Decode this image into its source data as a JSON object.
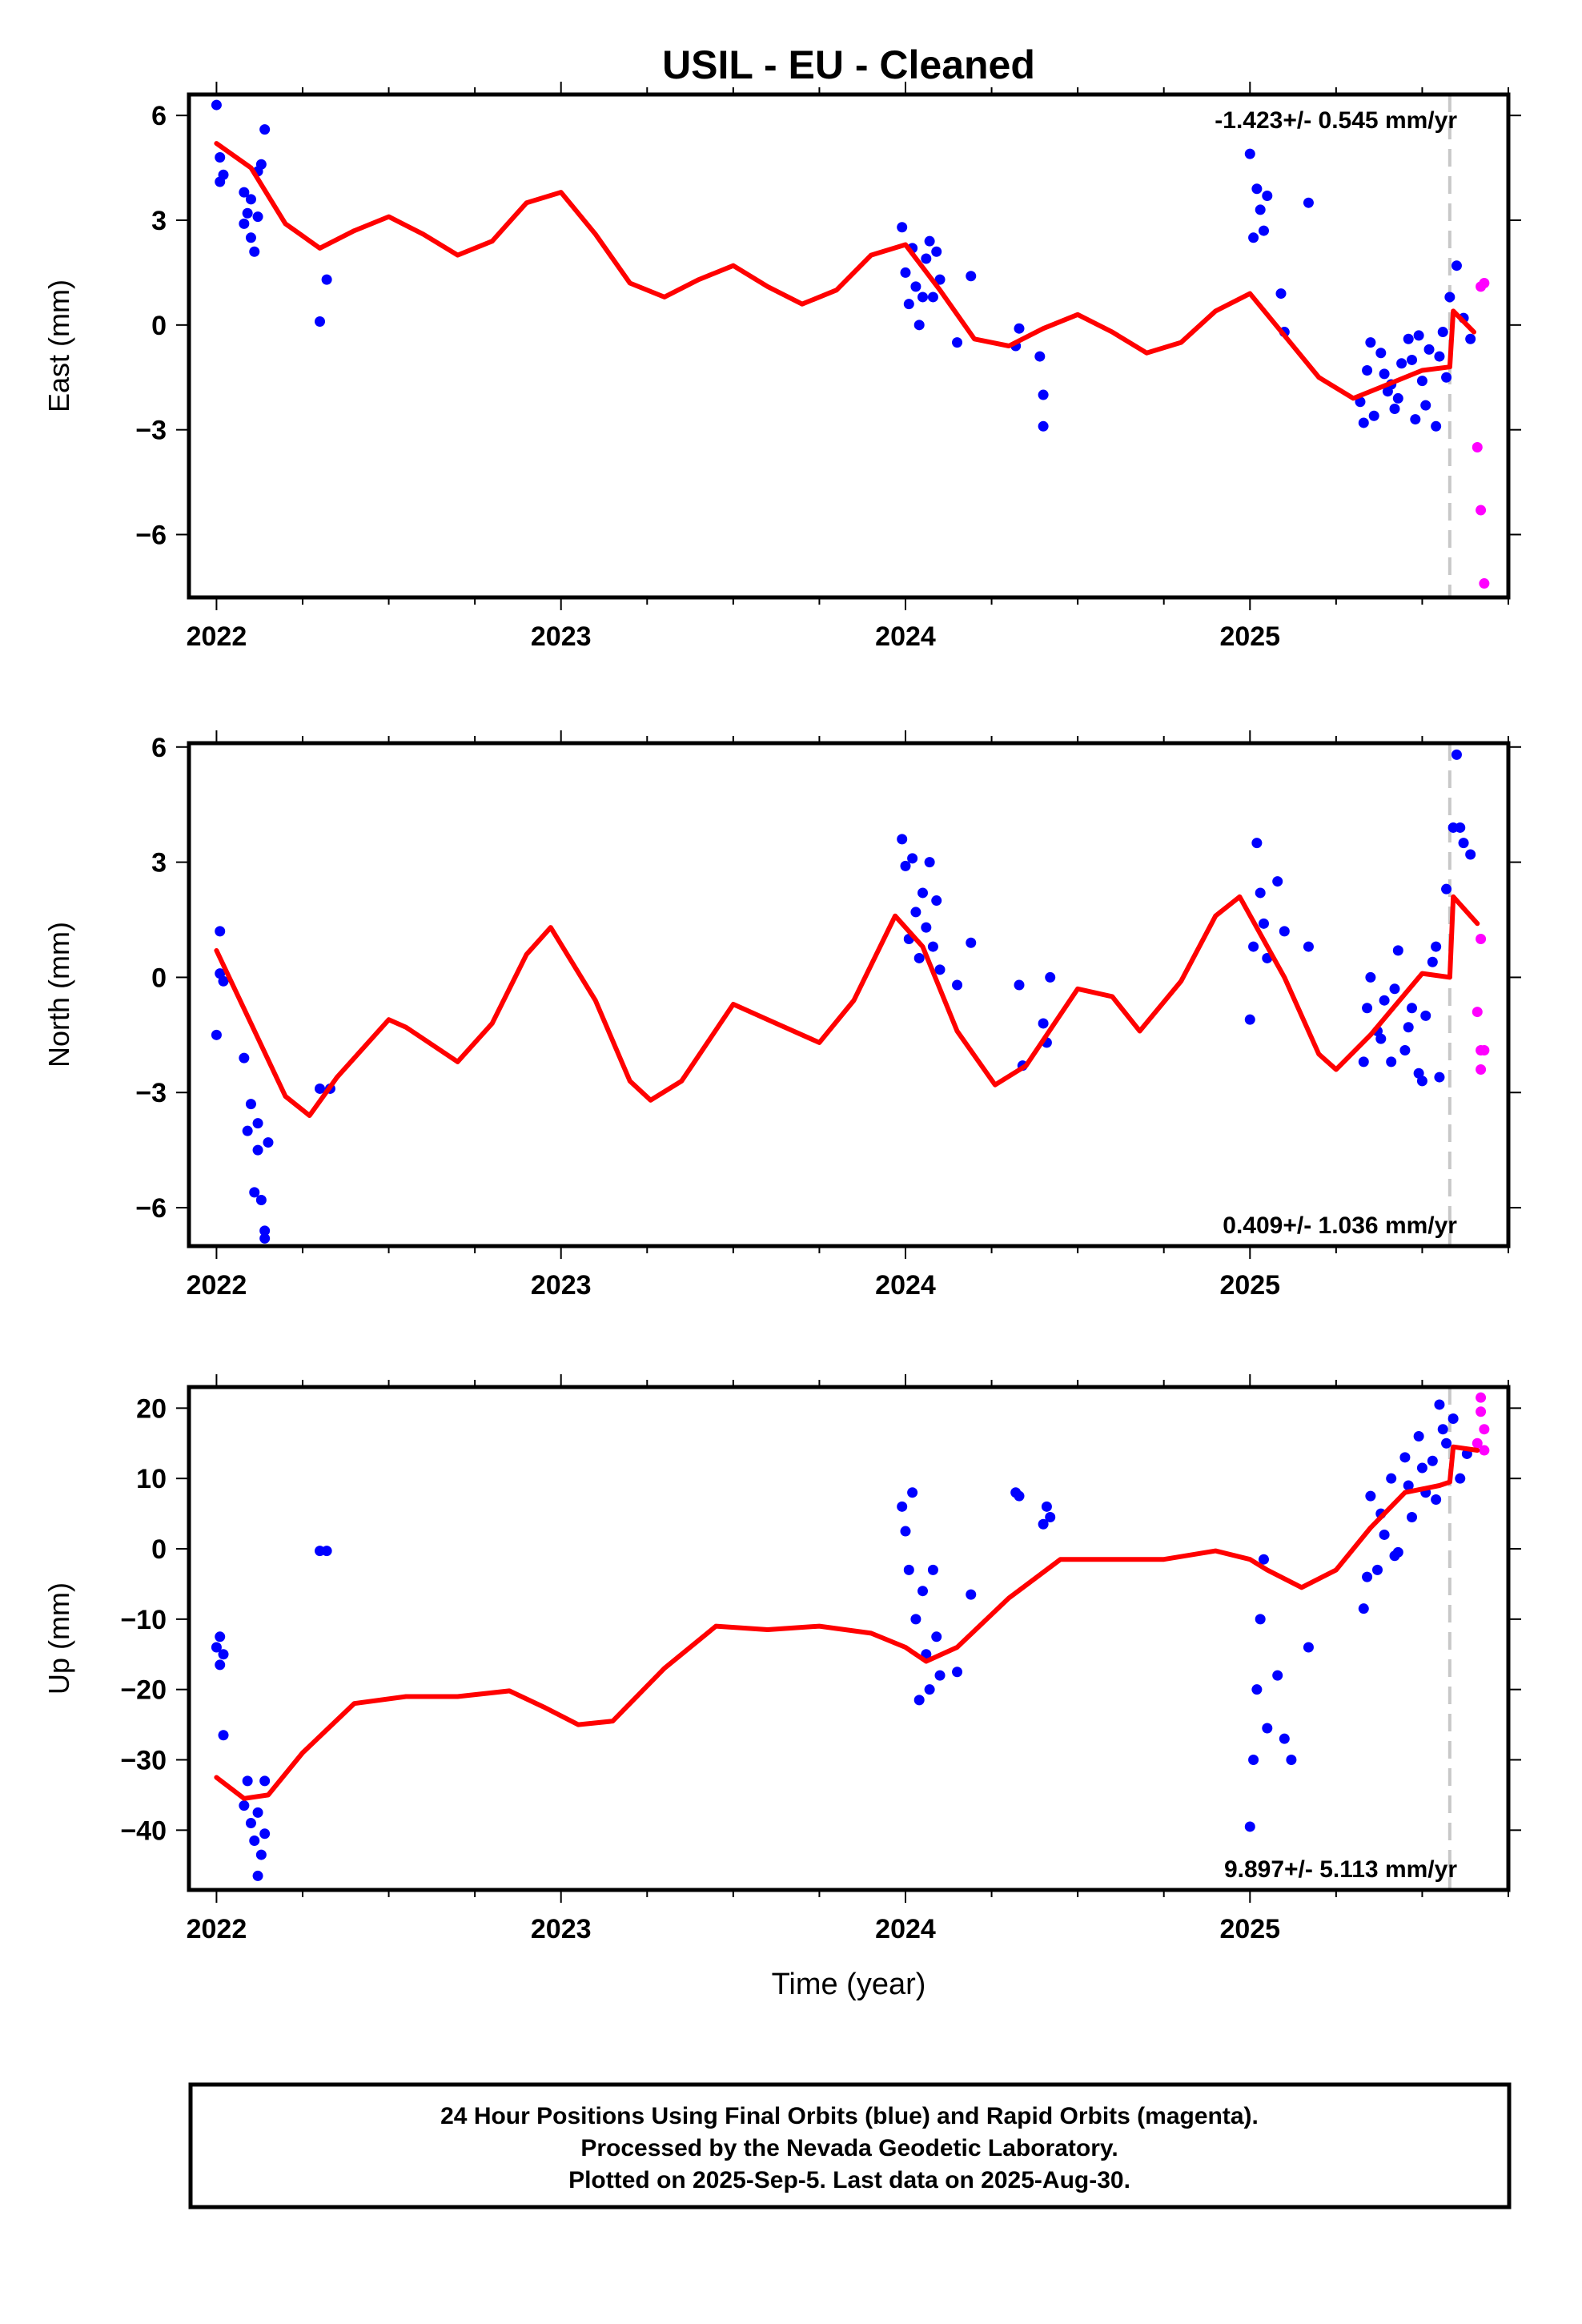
{
  "title": "USIL  - EU - Cleaned",
  "xlabel": "Time (year)",
  "footer": {
    "line1": "24 Hour Positions Using Final Orbits (blue) and Rapid Orbits (magenta).",
    "line2": "Processed by the Nevada Geodetic Laboratory.",
    "line3": "Plotted on 2025-Sep-5. Last data on 2025-Aug-30."
  },
  "colors": {
    "final_orbits": "#0000ff",
    "rapid_orbits": "#ff00ff",
    "model": "#ff0000",
    "marker": "#c8c8c8"
  },
  "chart_data": [
    {
      "type": "scatter",
      "ylabel": "East (mm)",
      "rate_label": "-1.423+/- 0.545 mm/yr",
      "rate_position": "top-right",
      "xlim": [
        2021.92,
        2025.75
      ],
      "ylim": [
        -7.8,
        6.6
      ],
      "xticks": [
        2022,
        2023,
        2024,
        2025
      ],
      "yticks": [
        6,
        3,
        0,
        -3,
        -6
      ],
      "ytick_labels": [
        "6",
        "3",
        "0",
        "−3",
        "−6"
      ],
      "vline_x": 2025.58,
      "model": {
        "x": [
          2022.0,
          2022.1,
          2022.2,
          2022.3,
          2022.4,
          2022.5,
          2022.6,
          2022.7,
          2022.8,
          2022.9,
          2023.0,
          2023.1,
          2023.2,
          2023.3,
          2023.4,
          2023.5,
          2023.6,
          2023.7,
          2023.8,
          2023.9,
          2024.0,
          2024.1,
          2024.2,
          2024.3,
          2024.4,
          2024.5,
          2024.6,
          2024.7,
          2024.8,
          2024.9,
          2025.0,
          2025.1,
          2025.2,
          2025.3,
          2025.4,
          2025.5,
          2025.58,
          2025.59,
          2025.65
        ],
        "y": [
          5.2,
          4.5,
          2.9,
          2.2,
          2.7,
          3.1,
          2.6,
          2.0,
          2.4,
          3.5,
          3.8,
          2.6,
          1.2,
          0.8,
          1.3,
          1.7,
          1.1,
          0.6,
          1.0,
          2.0,
          2.3,
          1.0,
          -0.4,
          -0.6,
          -0.1,
          0.3,
          -0.2,
          -0.8,
          -0.5,
          0.4,
          0.9,
          -0.3,
          -1.5,
          -2.1,
          -1.7,
          -1.3,
          -1.2,
          0.4,
          -0.2
        ]
      },
      "final": {
        "x": [
          2022.0,
          2022.01,
          2022.01,
          2022.02,
          2022.08,
          2022.08,
          2022.09,
          2022.1,
          2022.1,
          2022.11,
          2022.12,
          2022.12,
          2022.13,
          2022.14,
          2022.3,
          2022.32,
          2023.99,
          2024.0,
          2024.01,
          2024.02,
          2024.03,
          2024.04,
          2024.05,
          2024.06,
          2024.07,
          2024.08,
          2024.09,
          2024.1,
          2024.15,
          2024.19,
          2024.32,
          2024.33,
          2024.39,
          2024.4,
          2024.4,
          2025.0,
          2025.01,
          2025.02,
          2025.03,
          2025.04,
          2025.05,
          2025.09,
          2025.1,
          2025.17,
          2025.32,
          2025.34,
          2025.36,
          2025.38,
          2025.4,
          2025.42,
          2025.44,
          2025.46,
          2025.48,
          2025.5,
          2025.52,
          2025.54,
          2025.56,
          2025.58,
          2025.6,
          2025.62,
          2025.64,
          2025.35,
          2025.39,
          2025.43,
          2025.47,
          2025.51,
          2025.55,
          2025.33,
          2025.41,
          2025.49,
          2025.57
        ],
        "y": [
          6.3,
          4.1,
          4.8,
          4.3,
          3.8,
          2.9,
          3.2,
          2.5,
          3.6,
          2.1,
          4.4,
          3.1,
          4.6,
          5.6,
          0.1,
          1.3,
          2.8,
          1.5,
          0.6,
          2.2,
          1.1,
          0.0,
          0.8,
          1.9,
          2.4,
          0.8,
          2.1,
          1.3,
          -0.5,
          1.4,
          -0.6,
          -0.1,
          -0.9,
          -2.0,
          -2.9,
          4.9,
          2.5,
          3.9,
          3.3,
          2.7,
          3.7,
          0.9,
          -0.2,
          3.5,
          -2.2,
          -1.3,
          -2.6,
          -0.8,
          -1.9,
          -2.4,
          -1.1,
          -0.4,
          -2.7,
          -1.6,
          -0.7,
          -2.9,
          -0.2,
          0.8,
          1.7,
          0.2,
          -0.4,
          -0.5,
          -1.4,
          -2.1,
          -1.0,
          -2.3,
          -0.9,
          -2.8,
          -1.7,
          -0.3,
          -1.5
        ]
      },
      "rapid": {
        "x": [
          2025.67,
          2025.68,
          2025.66,
          2025.67,
          2025.68
        ],
        "y": [
          1.1,
          1.2,
          -3.5,
          -5.3,
          -7.4
        ]
      }
    },
    {
      "type": "scatter",
      "ylabel": "North (mm)",
      "rate_label": "0.409+/- 1.036 mm/yr",
      "rate_position": "bottom-right",
      "xlim": [
        2021.92,
        2025.75
      ],
      "ylim": [
        -7.0,
        6.1
      ],
      "xticks": [
        2022,
        2023,
        2024,
        2025
      ],
      "yticks": [
        6,
        3,
        0,
        -3,
        -6
      ],
      "ytick_labels": [
        "6",
        "3",
        "0",
        "−3",
        "−6"
      ],
      "vline_x": 2025.58,
      "model": {
        "x": [
          2022.0,
          2022.1,
          2022.2,
          2022.27,
          2022.35,
          2022.5,
          2022.55,
          2022.7,
          2022.8,
          2022.9,
          2022.97,
          2023.1,
          2023.2,
          2023.26,
          2023.35,
          2023.5,
          2023.6,
          2023.75,
          2023.85,
          2023.97,
          2024.05,
          2024.15,
          2024.26,
          2024.35,
          2024.5,
          2024.6,
          2024.68,
          2024.8,
          2024.9,
          2024.97,
          2025.1,
          2025.2,
          2025.25,
          2025.35,
          2025.5,
          2025.58,
          2025.59,
          2025.66
        ],
        "y": [
          0.7,
          -1.2,
          -3.1,
          -3.6,
          -2.6,
          -1.1,
          -1.3,
          -2.2,
          -1.2,
          0.6,
          1.3,
          -0.6,
          -2.7,
          -3.2,
          -2.7,
          -0.7,
          -1.1,
          -1.7,
          -0.6,
          1.6,
          0.8,
          -1.4,
          -2.8,
          -2.3,
          -0.3,
          -0.5,
          -1.4,
          -0.1,
          1.6,
          2.1,
          0.0,
          -2.0,
          -2.4,
          -1.5,
          0.1,
          0.0,
          2.1,
          1.4
        ]
      },
      "final": {
        "x": [
          2022.0,
          2022.01,
          2022.01,
          2022.02,
          2022.08,
          2022.09,
          2022.1,
          2022.11,
          2022.12,
          2022.12,
          2022.13,
          2022.14,
          2022.14,
          2022.15,
          2022.3,
          2022.33,
          2023.99,
          2024.0,
          2024.01,
          2024.02,
          2024.03,
          2024.04,
          2024.05,
          2024.06,
          2024.07,
          2024.08,
          2024.09,
          2024.1,
          2024.15,
          2024.19,
          2024.33,
          2024.34,
          2024.4,
          2024.41,
          2024.42,
          2025.0,
          2025.01,
          2025.02,
          2025.03,
          2025.04,
          2025.05,
          2025.08,
          2025.1,
          2025.17,
          2025.33,
          2025.35,
          2025.37,
          2025.39,
          2025.41,
          2025.43,
          2025.45,
          2025.47,
          2025.49,
          2025.51,
          2025.53,
          2025.55,
          2025.57,
          2025.59,
          2025.6,
          2025.61,
          2025.62,
          2025.64,
          2025.34,
          2025.38,
          2025.42,
          2025.46,
          2025.5,
          2025.54
        ],
        "y": [
          -1.5,
          0.1,
          1.2,
          -0.1,
          -2.1,
          -4.0,
          -3.3,
          -5.6,
          -4.5,
          -3.8,
          -5.8,
          -6.6,
          -6.8,
          -4.3,
          -2.9,
          -2.9,
          3.6,
          2.9,
          1.0,
          3.1,
          1.7,
          0.5,
          2.2,
          1.3,
          3.0,
          0.8,
          2.0,
          0.2,
          -0.2,
          0.9,
          -0.2,
          -2.3,
          -1.2,
          -1.7,
          0.0,
          -1.1,
          0.8,
          3.5,
          2.2,
          1.4,
          0.5,
          2.5,
          1.2,
          0.8,
          -2.2,
          0.0,
          -1.4,
          -0.6,
          -2.2,
          0.7,
          -1.9,
          -0.8,
          -2.5,
          -1.0,
          0.4,
          -2.6,
          2.3,
          3.9,
          5.8,
          3.9,
          3.5,
          3.2,
          -0.8,
          -1.6,
          -0.3,
          -1.3,
          -2.7,
          0.8
        ]
      },
      "rapid": {
        "x": [
          2025.67,
          2025.66,
          2025.67,
          2025.68,
          2025.67
        ],
        "y": [
          1.0,
          -0.9,
          -1.9,
          -1.9,
          -2.4
        ]
      }
    },
    {
      "type": "scatter",
      "ylabel": "Up (mm)",
      "rate_label": "9.897+/- 5.113 mm/yr",
      "rate_position": "bottom-right",
      "xlim": [
        2021.92,
        2025.75
      ],
      "ylim": [
        -48.5,
        23
      ],
      "xticks": [
        2022,
        2023,
        2024,
        2025
      ],
      "yticks": [
        20,
        10,
        0,
        -10,
        -20,
        -30,
        -40
      ],
      "ytick_labels": [
        "20",
        "10",
        "0",
        "−10",
        "−20",
        "−30",
        "−40"
      ],
      "vline_x": 2025.58,
      "model": {
        "x": [
          2022.0,
          2022.08,
          2022.15,
          2022.25,
          2022.4,
          2022.55,
          2022.7,
          2022.85,
          2022.95,
          2023.05,
          2023.15,
          2023.3,
          2023.45,
          2023.6,
          2023.75,
          2023.9,
          2024.0,
          2024.06,
          2024.15,
          2024.3,
          2024.45,
          2024.6,
          2024.75,
          2024.9,
          2025.0,
          2025.05,
          2025.15,
          2025.25,
          2025.35,
          2025.45,
          2025.55,
          2025.58,
          2025.59,
          2025.66
        ],
        "y": [
          -32.5,
          -35.5,
          -35.0,
          -29.0,
          -22.0,
          -21.0,
          -21.0,
          -20.2,
          -22.5,
          -25.0,
          -24.5,
          -17.0,
          -11.0,
          -11.5,
          -11.0,
          -12.0,
          -14.0,
          -16.0,
          -14.0,
          -7.0,
          -1.5,
          -1.5,
          -1.5,
          -0.3,
          -1.5,
          -3.0,
          -5.5,
          -3.0,
          3.0,
          8.0,
          9.0,
          9.5,
          14.5,
          14.0
        ]
      },
      "final": {
        "x": [
          2022.0,
          2022.01,
          2022.01,
          2022.02,
          2022.02,
          2022.08,
          2022.09,
          2022.1,
          2022.11,
          2022.12,
          2022.12,
          2022.13,
          2022.14,
          2022.14,
          2022.3,
          2022.32,
          2023.99,
          2024.0,
          2024.01,
          2024.02,
          2024.03,
          2024.04,
          2024.05,
          2024.06,
          2024.07,
          2024.08,
          2024.09,
          2024.1,
          2024.15,
          2024.19,
          2024.32,
          2024.33,
          2024.4,
          2024.41,
          2024.42,
          2025.0,
          2025.01,
          2025.02,
          2025.03,
          2025.04,
          2025.05,
          2025.08,
          2025.1,
          2025.12,
          2025.17,
          2025.33,
          2025.35,
          2025.37,
          2025.39,
          2025.41,
          2025.43,
          2025.45,
          2025.47,
          2025.49,
          2025.51,
          2025.53,
          2025.55,
          2025.57,
          2025.59,
          2025.61,
          2025.63,
          2025.34,
          2025.38,
          2025.42,
          2025.46,
          2025.5,
          2025.54,
          2025.56
        ],
        "y": [
          -14.0,
          -12.5,
          -16.5,
          -26.5,
          -15.0,
          -36.5,
          -33.0,
          -39.0,
          -41.5,
          -46.5,
          -37.5,
          -43.5,
          -40.5,
          -33.0,
          -0.3,
          -0.3,
          6.0,
          2.5,
          -3.0,
          8.0,
          -10.0,
          -21.5,
          -6.0,
          -15.0,
          -20.0,
          -3.0,
          -12.5,
          -18.0,
          -17.5,
          -6.5,
          8.0,
          7.5,
          3.5,
          6.0,
          4.5,
          -39.5,
          -30.0,
          -20.0,
          -10.0,
          -1.5,
          -25.5,
          -18.0,
          -27.0,
          -30.0,
          -14.0,
          -8.5,
          7.5,
          -3.0,
          2.0,
          10.0,
          -0.5,
          13.0,
          4.5,
          16.0,
          8.0,
          12.5,
          20.5,
          15.0,
          18.5,
          10.0,
          13.5,
          -4.0,
          5.0,
          -1.0,
          9.0,
          11.5,
          7.0,
          17.0
        ]
      },
      "rapid": {
        "x": [
          2025.67,
          2025.67,
          2025.68,
          2025.66,
          2025.68
        ],
        "y": [
          21.5,
          19.5,
          17.0,
          15.0,
          14.0
        ]
      }
    }
  ]
}
